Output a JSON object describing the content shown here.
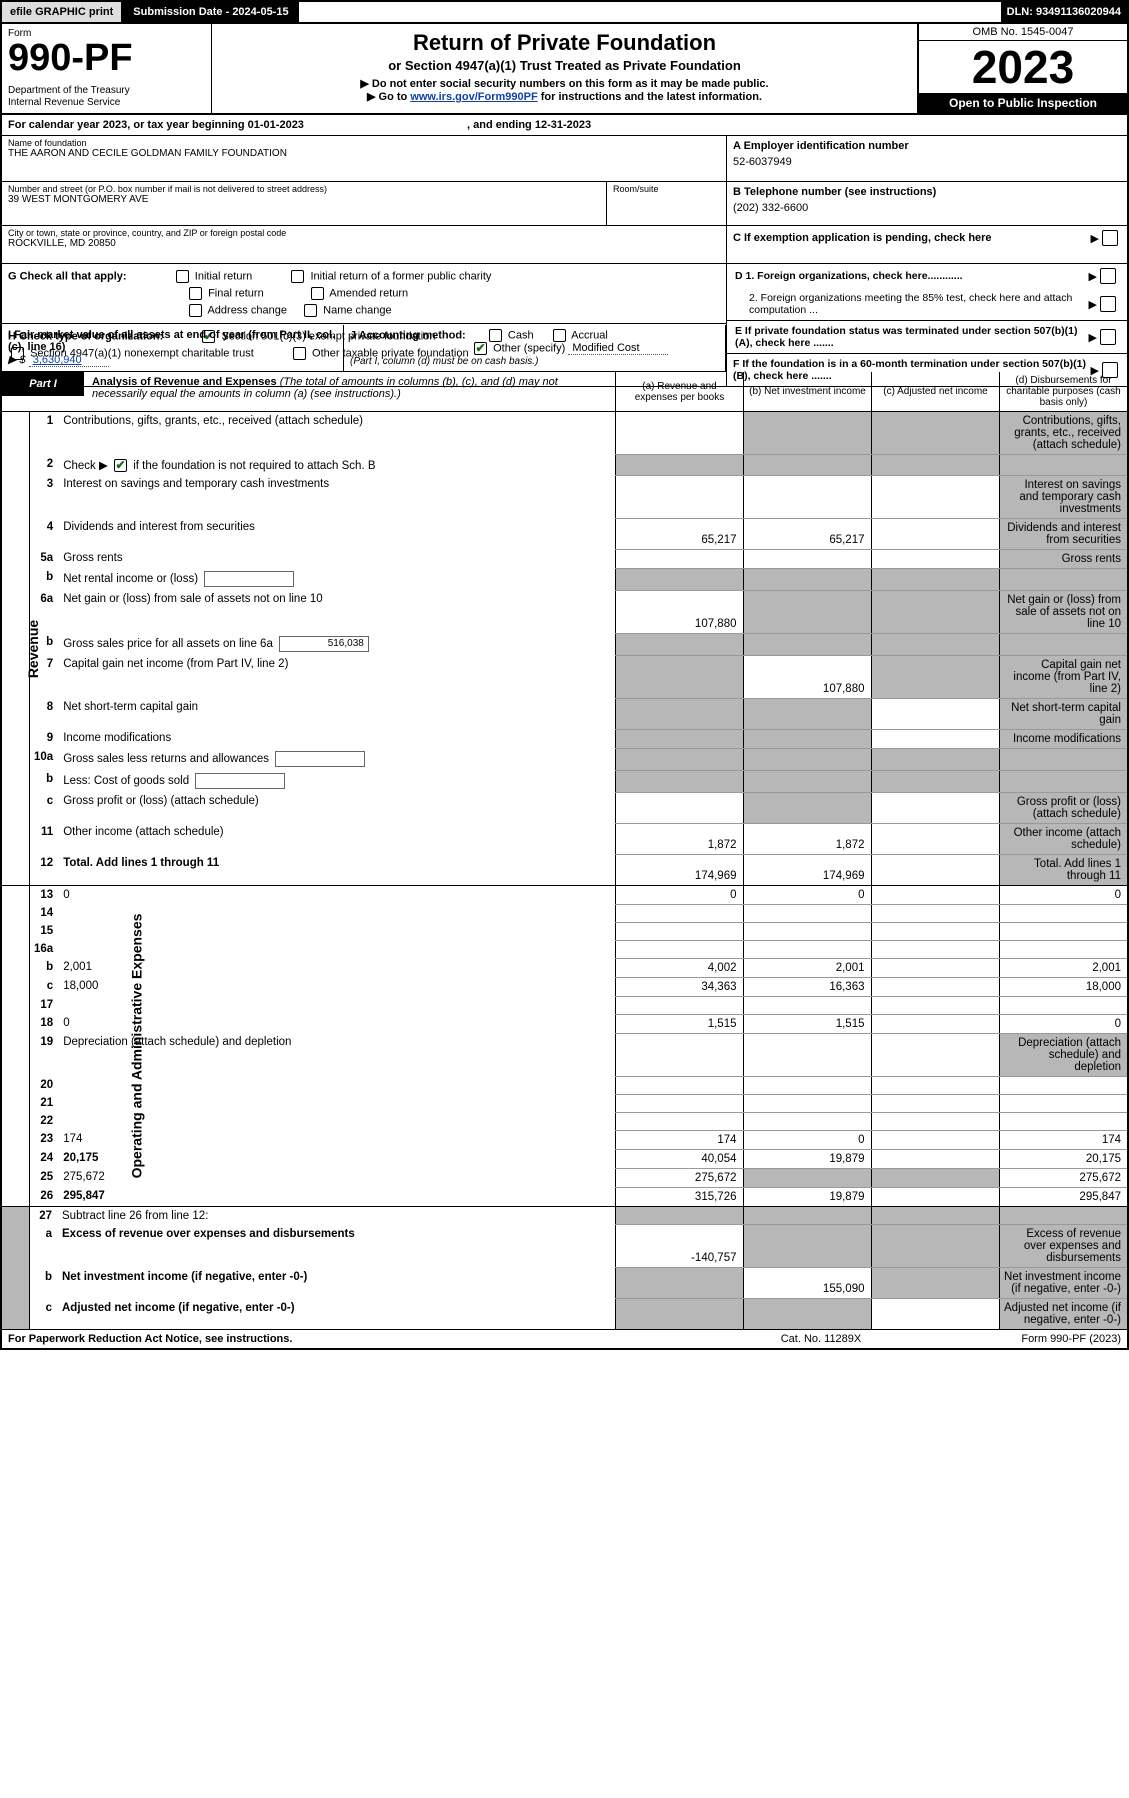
{
  "topbar": {
    "efile": "efile GRAPHIC print",
    "sub_label": "Submission Date - 2024-05-15",
    "dln": "DLN: 93491136020944"
  },
  "header": {
    "form_label": "Form",
    "form_no": "990-PF",
    "dept1": "Department of the Treasury",
    "dept2": "Internal Revenue Service",
    "title": "Return of Private Foundation",
    "subtitle": "or Section 4947(a)(1) Trust Treated as Private Foundation",
    "instr1": "▶ Do not enter social security numbers on this form as it may be made public.",
    "instr2_pre": "▶ Go to ",
    "instr2_link": "www.irs.gov/Form990PF",
    "instr2_post": " for instructions and the latest information.",
    "omb": "OMB No. 1545-0047",
    "year": "2023",
    "open": "Open to Public Inspection"
  },
  "calendar": {
    "text_pre": "For calendar year 2023, or tax year beginning ",
    "begin": "01-01-2023",
    "mid": " , and ending ",
    "end": "12-31-2023"
  },
  "entity": {
    "name_label": "Name of foundation",
    "name": "THE AARON AND CECILE GOLDMAN FAMILY FOUNDATION",
    "addr_label": "Number and street (or P.O. box number if mail is not delivered to street address)",
    "addr": "39 WEST MONTGOMERY AVE",
    "room_label": "Room/suite",
    "city_label": "City or town, state or province, country, and ZIP or foreign postal code",
    "city": "ROCKVILLE, MD  20850",
    "a_label": "A Employer identification number",
    "ein": "52-6037949",
    "b_label": "B Telephone number (see instructions)",
    "phone": "(202) 332-6600",
    "c_label": "C If exemption application is pending, check here"
  },
  "g": {
    "label": "G Check all that apply:",
    "initial": "Initial return",
    "initial_former": "Initial return of a former public charity",
    "final": "Final return",
    "amended": "Amended return",
    "addr_change": "Address change",
    "name_change": "Name change"
  },
  "h": {
    "label": "H Check type of organization:",
    "opt1": "Section 501(c)(3) exempt private foundation",
    "opt2": "Section 4947(a)(1) nonexempt charitable trust",
    "opt3": "Other taxable private foundation"
  },
  "i": {
    "label": "I Fair market value of all assets at end of year (from Part II, col. (c), line 16)",
    "arrow": "▶ $",
    "value": "3,630,940"
  },
  "j": {
    "label": "J Accounting method:",
    "cash": "Cash",
    "accrual": "Accrual",
    "other": "Other (specify)",
    "other_val": "Modified Cost",
    "note": "(Part I, column (d) must be on cash basis.)"
  },
  "d": {
    "d1": "D 1. Foreign organizations, check here............",
    "d2": "2. Foreign organizations meeting the 85% test, check here and attach computation ...",
    "e": "E  If private foundation status was terminated under section 507(b)(1)(A), check here .......",
    "f": "F  If the foundation is in a 60-month termination under section 507(b)(1)(B), check here ......."
  },
  "part1": {
    "tab": "Part I",
    "title": "Analysis of Revenue and Expenses ",
    "title_note": "(The total of amounts in columns (b), (c), and (d) may not necessarily equal the amounts in column (a) (see instructions).)",
    "col_a": "(a)   Revenue and expenses per books",
    "col_b": "(b)   Net investment income",
    "col_c": "(c)   Adjusted net income",
    "col_d": "(d)  Disbursements for charitable purposes (cash basis only)"
  },
  "sides": {
    "revenue": "Revenue",
    "opexp": "Operating and Administrative Expenses"
  },
  "rows": {
    "r1": {
      "n": "1",
      "d": "Contributions, gifts, grants, etc., received (attach schedule)",
      "a": "",
      "b_sh": 1,
      "c_sh": 1,
      "d_sh": 1
    },
    "r2": {
      "n": "2",
      "d_pre": "Check ▶ ",
      "d_post": " if the foundation is not required to attach Sch. B",
      "checked": 1,
      "blank": 1
    },
    "r3": {
      "n": "3",
      "d": "Interest on savings and temporary cash investments",
      "a": "",
      "b": "",
      "c": "",
      "d_sh": 1
    },
    "r4": {
      "n": "4",
      "d": "Dividends and interest from securities",
      "a": "65,217",
      "b": "65,217",
      "c": "",
      "d_sh": 1
    },
    "r5a": {
      "n": "5a",
      "d": "Gross rents",
      "a": "",
      "b": "",
      "c": "",
      "d_sh": 1
    },
    "r5b": {
      "n": "b",
      "d": "Net rental income or (loss)",
      "inline": "",
      "blank": 1
    },
    "r6a": {
      "n": "6a",
      "d": "Net gain or (loss) from sale of assets not on line 10",
      "a": "107,880",
      "b_sh": 1,
      "c_sh": 1,
      "d_sh": 1
    },
    "r6b": {
      "n": "b",
      "d": "Gross sales price for all assets on line 6a",
      "inline": "516,038",
      "blank": 1
    },
    "r7": {
      "n": "7",
      "d": "Capital gain net income (from Part IV, line 2)",
      "a_sh": 1,
      "b": "107,880",
      "c_sh": 1,
      "d_sh": 1
    },
    "r8": {
      "n": "8",
      "d": "Net short-term capital gain",
      "a_sh": 1,
      "b_sh": 1,
      "c": "",
      "d_sh": 1
    },
    "r9": {
      "n": "9",
      "d": "Income modifications",
      "a_sh": 1,
      "b_sh": 1,
      "c": "",
      "d_sh": 1
    },
    "r10a": {
      "n": "10a",
      "d": "Gross sales less returns and allowances",
      "inline": "",
      "blank": 1
    },
    "r10b": {
      "n": "b",
      "d": "Less: Cost of goods sold",
      "inline": "",
      "blank": 1
    },
    "r10c": {
      "n": "c",
      "d": "Gross profit or (loss) (attach schedule)",
      "a": "",
      "b_sh": 1,
      "c": "",
      "d_sh": 1
    },
    "r11": {
      "n": "11",
      "d": "Other income (attach schedule)",
      "a": "1,872",
      "b": "1,872",
      "c": "",
      "d_sh": 1
    },
    "r12": {
      "n": "12",
      "d": "Total. Add lines 1 through 11",
      "bold": 1,
      "a": "174,969",
      "b": "174,969",
      "c": "",
      "d_sh": 1
    },
    "r13": {
      "n": "13",
      "d": "0",
      "a": "0",
      "b": "0",
      "c": ""
    },
    "r14": {
      "n": "14",
      "d": "",
      "a": "",
      "b": "",
      "c": ""
    },
    "r15": {
      "n": "15",
      "d": "",
      "a": "",
      "b": "",
      "c": ""
    },
    "r16a": {
      "n": "16a",
      "d": "",
      "a": "",
      "b": "",
      "c": ""
    },
    "r16b": {
      "n": "b",
      "d": "2,001",
      "a": "4,002",
      "b": "2,001",
      "c": ""
    },
    "r16c": {
      "n": "c",
      "d": "18,000",
      "a": "34,363",
      "b": "16,363",
      "c": ""
    },
    "r17": {
      "n": "17",
      "d": "",
      "a": "",
      "b": "",
      "c": ""
    },
    "r18": {
      "n": "18",
      "d": "0",
      "a": "1,515",
      "b": "1,515",
      "c": ""
    },
    "r19": {
      "n": "19",
      "d": "Depreciation (attach schedule) and depletion",
      "a": "",
      "b": "",
      "c": "",
      "d_sh": 1
    },
    "r20": {
      "n": "20",
      "d": "",
      "a": "",
      "b": "",
      "c": ""
    },
    "r21": {
      "n": "21",
      "d": "",
      "a": "",
      "b": "",
      "c": ""
    },
    "r22": {
      "n": "22",
      "d": "",
      "a": "",
      "b": "",
      "c": ""
    },
    "r23": {
      "n": "23",
      "d": "174",
      "a": "174",
      "b": "0",
      "c": ""
    },
    "r24": {
      "n": "24",
      "d": "20,175",
      "bold": 1,
      "a": "40,054",
      "b": "19,879",
      "c": ""
    },
    "r25": {
      "n": "25",
      "d": "275,672",
      "a": "275,672",
      "b_sh": 1,
      "c_sh": 1
    },
    "r26": {
      "n": "26",
      "d": "295,847",
      "bold": 1,
      "a": "315,726",
      "b": "19,879",
      "c": ""
    },
    "r27": {
      "n": "27",
      "d": "Subtract line 26 from line 12:",
      "blank": 1
    },
    "r27a": {
      "n": "a",
      "d": "Excess of revenue over expenses and disbursements",
      "bold": 1,
      "a": "-140,757",
      "b_sh": 1,
      "c_sh": 1,
      "d_sh": 1
    },
    "r27b": {
      "n": "b",
      "d": "Net investment income (if negative, enter -0-)",
      "bold": 1,
      "a_sh": 1,
      "b": "155,090",
      "c_sh": 1,
      "d_sh": 1
    },
    "r27c": {
      "n": "c",
      "d": "Adjusted net income (if negative, enter -0-)",
      "bold": 1,
      "a_sh": 1,
      "b_sh": 1,
      "c": "",
      "d_sh": 1
    }
  },
  "footer": {
    "left": "For Paperwork Reduction Act Notice, see instructions.",
    "mid": "Cat. No. 11289X",
    "right": "Form 990-PF (2023)"
  },
  "colors": {
    "shade": "#b7b7b7",
    "link": "#1240ab",
    "check": "#1a6b1a"
  }
}
